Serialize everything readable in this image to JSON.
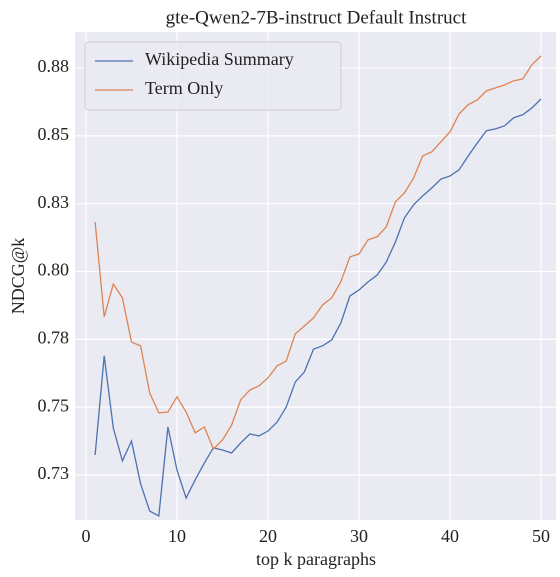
{
  "chart_data": {
    "type": "line",
    "title": "gte-Qwen2-7B-instruct Default Instruct",
    "xlabel": "top k paragraphs",
    "ylabel": "NDCG@k",
    "x": [
      1,
      2,
      3,
      4,
      5,
      6,
      7,
      8,
      9,
      10,
      11,
      12,
      13,
      14,
      15,
      16,
      17,
      18,
      19,
      20,
      21,
      22,
      23,
      24,
      25,
      26,
      27,
      28,
      29,
      30,
      31,
      32,
      33,
      34,
      35,
      36,
      37,
      38,
      39,
      40,
      41,
      42,
      43,
      44,
      45,
      46,
      47,
      48,
      49,
      50
    ],
    "series": [
      {
        "name": "Wikipedia Summary",
        "color": "#4c72b0",
        "values": [
          0.7324,
          0.7689,
          0.7423,
          0.7302,
          0.7375,
          0.7217,
          0.7117,
          0.7099,
          0.7427,
          0.7268,
          0.7165,
          0.7232,
          0.7294,
          0.735,
          0.7342,
          0.7331,
          0.7368,
          0.7401,
          0.7394,
          0.7412,
          0.7445,
          0.75,
          0.7593,
          0.763,
          0.7714,
          0.7726,
          0.7748,
          0.781,
          0.791,
          0.7932,
          0.7962,
          0.7987,
          0.8035,
          0.8109,
          0.8198,
          0.8246,
          0.8279,
          0.8308,
          0.8341,
          0.8352,
          0.8375,
          0.8426,
          0.8474,
          0.8519,
          0.8526,
          0.8537,
          0.8567,
          0.8578,
          0.8603,
          0.8636
        ]
      },
      {
        "name": "Term Only",
        "color": "#dd8452",
        "values": [
          0.8183,
          0.7833,
          0.7954,
          0.7903,
          0.774,
          0.7726,
          0.7552,
          0.7479,
          0.7482,
          0.7538,
          0.7482,
          0.7405,
          0.7427,
          0.7346,
          0.7379,
          0.7434,
          0.7527,
          0.7563,
          0.7578,
          0.7608,
          0.7652,
          0.767,
          0.777,
          0.7799,
          0.7829,
          0.7877,
          0.7903,
          0.7962,
          0.8054,
          0.8065,
          0.8117,
          0.8128,
          0.8165,
          0.8257,
          0.829,
          0.8345,
          0.8426,
          0.8441,
          0.8478,
          0.8515,
          0.8581,
          0.8615,
          0.8633,
          0.8666,
          0.8677,
          0.8688,
          0.8703,
          0.871,
          0.8762,
          0.8795
        ]
      }
    ],
    "xlim": [
      -1.21,
      51.65
    ],
    "xticks": [
      0,
      10,
      20,
      30,
      40,
      50
    ],
    "ylim": [
      0.7084,
      0.8883
    ],
    "yticks": [
      {
        "value": 0.725,
        "label": "0.73"
      },
      {
        "value": 0.75,
        "label": "0.75"
      },
      {
        "value": 0.775,
        "label": "0.78"
      },
      {
        "value": 0.8,
        "label": "0.80"
      },
      {
        "value": 0.825,
        "label": "0.83"
      },
      {
        "value": 0.85,
        "label": "0.85"
      },
      {
        "value": 0.875,
        "label": "0.88"
      }
    ],
    "grid": true,
    "legend": "upper left"
  }
}
